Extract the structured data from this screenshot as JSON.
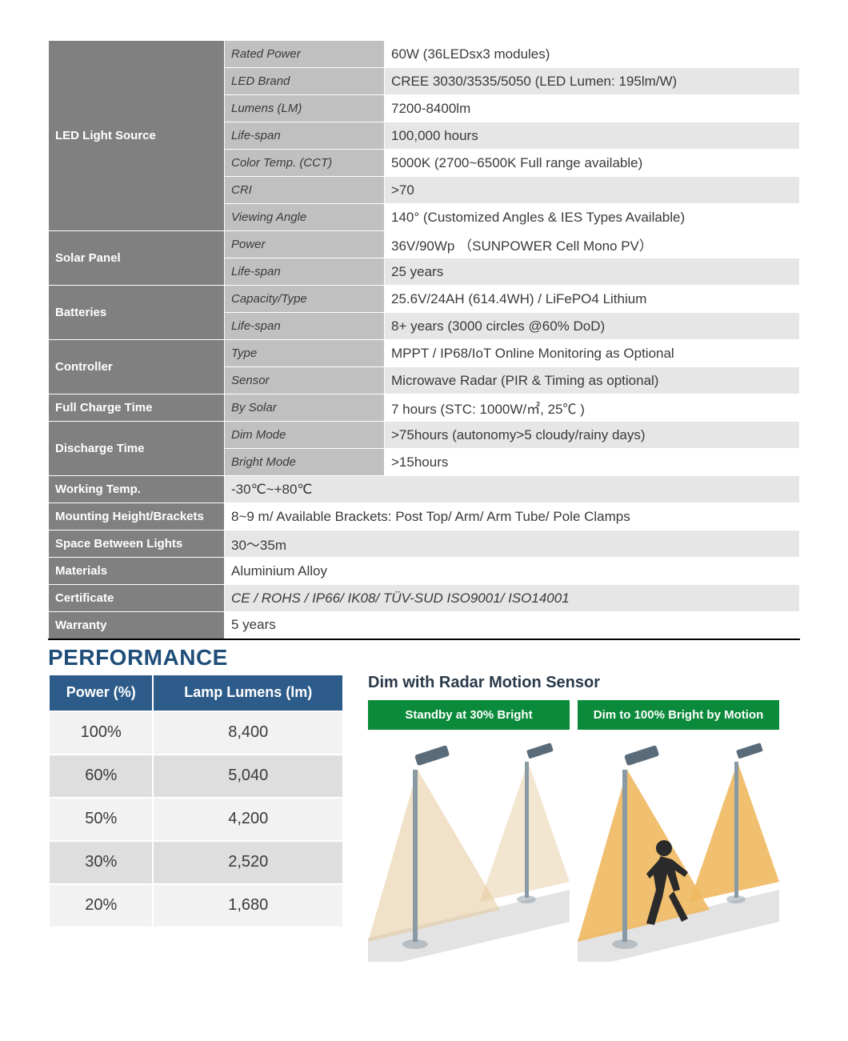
{
  "spec": {
    "categoryCellColor": "#808080",
    "propCellColor": "#c0c0c0",
    "altRowColor": "#e6e6e6",
    "borderColor": "#ffffff",
    "categories": [
      {
        "name": "LED Light Source",
        "props": [
          {
            "label": "Rated Power",
            "value": "60W (36LEDsx3 modules)"
          },
          {
            "label": "LED Brand",
            "value": "CREE 3030/3535/5050 (LED Lumen: 195lm/W)"
          },
          {
            "label": "Lumens (LM)",
            "value": "7200-8400lm"
          },
          {
            "label": "Life-span",
            "value": "100,000 hours"
          },
          {
            "label": "Color Temp. (CCT)",
            "value": "5000K (2700~6500K Full range available)"
          },
          {
            "label": "CRI",
            "value": ">70"
          },
          {
            "label": "Viewing Angle",
            "value": "140°  (Customized Angles  & IES Types Available)"
          }
        ]
      },
      {
        "name": "Solar Panel",
        "props": [
          {
            "label": "Power",
            "value": "36V/90Wp （SUNPOWER Cell Mono PV）"
          },
          {
            "label": "Life-span",
            "value": "25 years"
          }
        ]
      },
      {
        "name": "Batteries",
        "props": [
          {
            "label": "Capacity/Type",
            "value": "25.6V/24AH (614.4WH) / LiFePO4 Lithium"
          },
          {
            "label": "Life-span",
            "value": "8+ years (3000 circles @60% DoD)"
          }
        ]
      },
      {
        "name": "Controller",
        "props": [
          {
            "label": "Type",
            "value": "MPPT / IP68/IoT Online Monitoring as Optional"
          },
          {
            "label": "Sensor",
            "value": "Microwave Radar (PIR & Timing as optional)"
          }
        ]
      },
      {
        "name": "Full Charge Time",
        "props": [
          {
            "label": "By Solar",
            "value": "7 hours  (STC: 1000W/㎡, 25℃ )"
          }
        ]
      },
      {
        "name": "Discharge Time",
        "props": [
          {
            "label": "Dim Mode",
            "value": ">75hours (autonomy>5 cloudy/rainy days)"
          },
          {
            "label": "Bright Mode",
            "value": ">15hours"
          }
        ]
      }
    ],
    "singleRows": [
      {
        "name": "Working Temp.",
        "value": "-30℃~+80℃",
        "alt": true
      },
      {
        "name": "Mounting Height/Brackets",
        "value": "8~9 m/ Available Brackets: Post Top/ Arm/ Arm Tube/ Pole Clamps",
        "alt": false
      },
      {
        "name": "Space Between Lights",
        "value": "30～35m",
        "alt": true
      },
      {
        "name": "Materials",
        "value": "Aluminium Alloy",
        "alt": false
      },
      {
        "name": "Certificate",
        "value": "CE / ROHS / IP66/ IK08/ TÜV-SUD ISO9001/ ISO14001",
        "alt": true,
        "italic": true
      },
      {
        "name": "Warranty",
        "value": "5 years",
        "alt": false
      }
    ]
  },
  "performance": {
    "title": "PERFORMANCE",
    "titleColor": "#1f4e79",
    "headerBg": "#2e5c8a",
    "headers": [
      "Power (%)",
      "Lamp Lumens (lm)"
    ],
    "rows": [
      [
        "100%",
        "8,400"
      ],
      [
        "60%",
        "5,040"
      ],
      [
        "50%",
        "4,200"
      ],
      [
        "30%",
        "2,520"
      ],
      [
        "20%",
        "1,680"
      ]
    ]
  },
  "radar": {
    "title": "Dim with Radar Motion Sensor",
    "headerBg": "#0a8a3a",
    "panels": [
      {
        "label": "Standby at 30%  Bright",
        "showPerson": false,
        "light": "#e4c89a"
      },
      {
        "label": "Dim to 100% Bright by Motion",
        "showPerson": true,
        "light": "#f0b860"
      }
    ],
    "poleColor": "#8a9aa4",
    "lampColor": "#5a6b7a",
    "personColor": "#2a2a2a",
    "groundColor": "#d0d0d0"
  }
}
